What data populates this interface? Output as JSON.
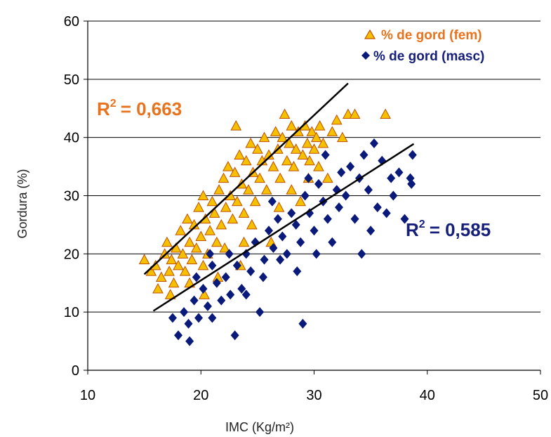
{
  "chart_data": {
    "type": "scatter",
    "xlabel": "IMC (Kg/m²)",
    "ylabel": "Gordura  (%)",
    "xlim": [
      10,
      50
    ],
    "ylim": [
      0,
      60
    ],
    "x_ticks": [
      10,
      20,
      30,
      40,
      50
    ],
    "y_ticks": [
      0,
      10,
      20,
      30,
      40,
      50,
      60
    ],
    "grid": "horizontal",
    "legend_position": "top-right",
    "colors": {
      "fem_fill": "#F5C000",
      "fem_stroke": "#C05000",
      "masc": "#0A1A7A",
      "fem_text": "#E8731C",
      "masc_text": "#16207A"
    },
    "series": [
      {
        "name": "% de gord (fem)",
        "marker": "triangle",
        "trendline": {
          "x": [
            15,
            33
          ],
          "y": [
            16.5,
            49.3
          ]
        },
        "r2_label": "R",
        "r2_sup": "2",
        "r2_value": "= 0,663",
        "points": [
          [
            15.0,
            19
          ],
          [
            15.6,
            17
          ],
          [
            16.0,
            18
          ],
          [
            16.2,
            14
          ],
          [
            16.5,
            16
          ],
          [
            16.8,
            20
          ],
          [
            17.0,
            22
          ],
          [
            17.2,
            17
          ],
          [
            17.4,
            19
          ],
          [
            17.6,
            15
          ],
          [
            17.8,
            21
          ],
          [
            18.0,
            18
          ],
          [
            18.2,
            24
          ],
          [
            18.4,
            20
          ],
          [
            18.6,
            17
          ],
          [
            18.8,
            26
          ],
          [
            19.0,
            22
          ],
          [
            19.2,
            19
          ],
          [
            19.4,
            25
          ],
          [
            19.6,
            21
          ],
          [
            19.8,
            28
          ],
          [
            20.0,
            23
          ],
          [
            20.2,
            30
          ],
          [
            20.3,
            13
          ],
          [
            20.4,
            26
          ],
          [
            20.6,
            20
          ],
          [
            20.8,
            24
          ],
          [
            21.0,
            29
          ],
          [
            21.2,
            27
          ],
          [
            21.4,
            22
          ],
          [
            21.6,
            31
          ],
          [
            21.8,
            25
          ],
          [
            22.0,
            33
          ],
          [
            22.1,
            21
          ],
          [
            22.2,
            28
          ],
          [
            22.4,
            35
          ],
          [
            22.6,
            30
          ],
          [
            22.8,
            26
          ],
          [
            23.0,
            34
          ],
          [
            23.1,
            42
          ],
          [
            23.2,
            29
          ],
          [
            23.4,
            37
          ],
          [
            23.5,
            18
          ],
          [
            23.6,
            32
          ],
          [
            23.8,
            27
          ],
          [
            24.0,
            36
          ],
          [
            24.2,
            31
          ],
          [
            24.4,
            39
          ],
          [
            24.6,
            34
          ],
          [
            24.8,
            29
          ],
          [
            25.0,
            38
          ],
          [
            25.2,
            33
          ],
          [
            25.4,
            36
          ],
          [
            25.6,
            40
          ],
          [
            25.8,
            31
          ],
          [
            26.0,
            37
          ],
          [
            26.2,
            22
          ],
          [
            26.4,
            35
          ],
          [
            26.6,
            41
          ],
          [
            26.8,
            38
          ],
          [
            27.0,
            33
          ],
          [
            27.2,
            40
          ],
          [
            27.4,
            44
          ],
          [
            27.6,
            36
          ],
          [
            27.8,
            39
          ],
          [
            28.0,
            42
          ],
          [
            28.2,
            35
          ],
          [
            28.4,
            38
          ],
          [
            28.6,
            41
          ],
          [
            28.8,
            29
          ],
          [
            29.0,
            37
          ],
          [
            29.2,
            42
          ],
          [
            29.4,
            39
          ],
          [
            29.6,
            36
          ],
          [
            29.8,
            41
          ],
          [
            30.0,
            38
          ],
          [
            30.2,
            40
          ],
          [
            30.4,
            35
          ],
          [
            30.8,
            39
          ],
          [
            31.2,
            33
          ],
          [
            31.6,
            41
          ],
          [
            32.0,
            43
          ],
          [
            32.5,
            40
          ],
          [
            33.0,
            44
          ],
          [
            33.6,
            44
          ],
          [
            36.3,
            44
          ],
          [
            19.0,
            15
          ],
          [
            20.2,
            18
          ],
          [
            21.5,
            16
          ],
          [
            23.8,
            22
          ],
          [
            24.5,
            25
          ],
          [
            26.9,
            28
          ],
          [
            28.0,
            31
          ],
          [
            29.5,
            33
          ],
          [
            30.5,
            42
          ],
          [
            17.3,
            13
          ]
        ]
      },
      {
        "name": "% de gord (masc)",
        "marker": "diamond",
        "trendline": {
          "x": [
            15.8,
            38.8
          ],
          "y": [
            10.2,
            38.9
          ]
        },
        "r2_label": "R",
        "r2_sup": "2",
        "r2_value": "= 0,585",
        "points": [
          [
            17.5,
            9
          ],
          [
            18.0,
            6
          ],
          [
            18.5,
            10
          ],
          [
            18.9,
            8
          ],
          [
            19.0,
            5
          ],
          [
            19.4,
            12
          ],
          [
            19.8,
            9
          ],
          [
            20.2,
            14
          ],
          [
            20.6,
            11
          ],
          [
            21.0,
            9
          ],
          [
            21.4,
            15
          ],
          [
            21.8,
            12
          ],
          [
            22.2,
            16
          ],
          [
            22.6,
            13
          ],
          [
            23.0,
            6
          ],
          [
            23.2,
            18
          ],
          [
            23.6,
            14
          ],
          [
            24.0,
            20
          ],
          [
            24.4,
            17
          ],
          [
            24.8,
            22
          ],
          [
            25.2,
            10
          ],
          [
            25.6,
            19
          ],
          [
            26.0,
            24
          ],
          [
            26.4,
            21
          ],
          [
            26.8,
            26
          ],
          [
            27.2,
            23
          ],
          [
            27.6,
            20
          ],
          [
            28.0,
            27
          ],
          [
            28.4,
            25
          ],
          [
            28.8,
            22
          ],
          [
            29.0,
            8
          ],
          [
            29.2,
            30
          ],
          [
            29.6,
            27
          ],
          [
            30.0,
            24
          ],
          [
            30.4,
            32
          ],
          [
            30.8,
            29
          ],
          [
            31.2,
            26
          ],
          [
            31.6,
            22
          ],
          [
            32.0,
            31
          ],
          [
            32.4,
            34
          ],
          [
            32.8,
            30
          ],
          [
            33.2,
            35
          ],
          [
            33.6,
            26
          ],
          [
            34.0,
            33
          ],
          [
            34.4,
            37
          ],
          [
            34.8,
            31
          ],
          [
            35.3,
            39
          ],
          [
            35.6,
            28
          ],
          [
            36.0,
            36
          ],
          [
            36.4,
            27
          ],
          [
            36.8,
            33
          ],
          [
            37.5,
            34
          ],
          [
            38.0,
            26
          ],
          [
            38.5,
            33
          ],
          [
            38.7,
            37
          ],
          [
            38.6,
            32
          ],
          [
            21.0,
            18
          ],
          [
            22.5,
            20
          ],
          [
            24.0,
            13
          ],
          [
            25.5,
            16
          ],
          [
            27.0,
            19
          ],
          [
            28.5,
            17
          ],
          [
            29.5,
            33
          ],
          [
            31.0,
            37
          ],
          [
            26.3,
            29
          ],
          [
            19.6,
            16
          ],
          [
            20.8,
            20
          ],
          [
            30.2,
            20
          ],
          [
            32.2,
            28
          ],
          [
            35.0,
            24
          ],
          [
            37.0,
            30
          ],
          [
            34.2,
            20
          ]
        ]
      }
    ]
  }
}
